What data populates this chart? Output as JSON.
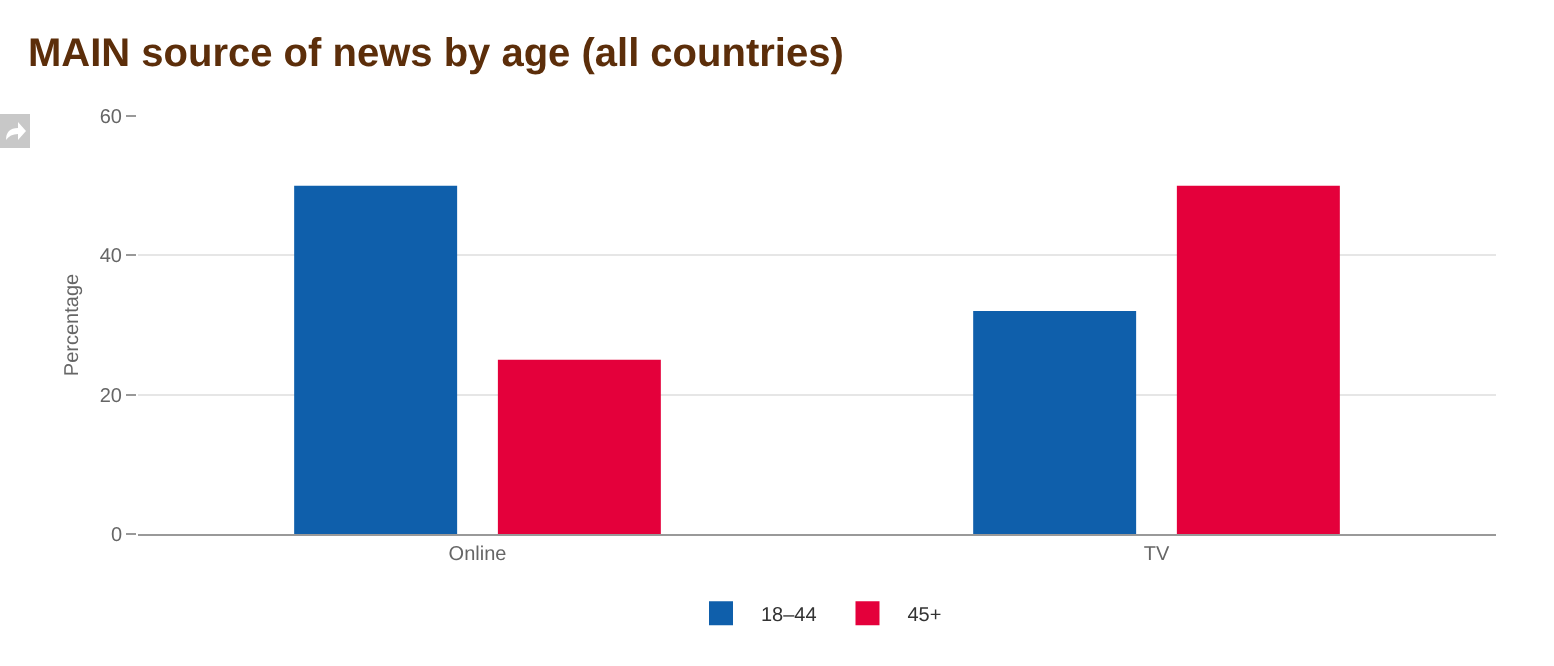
{
  "chart_data": {
    "type": "bar",
    "title": "MAIN source of news by age (all countries)",
    "ylabel": "Percentage",
    "categories": [
      "Online",
      "TV"
    ],
    "series": [
      {
        "name": "18–44",
        "color": "#0f5fab",
        "values": [
          50,
          32
        ]
      },
      {
        "name": "45+",
        "color": "#e4003b",
        "values": [
          25,
          50
        ]
      }
    ],
    "ylim": [
      0,
      60
    ],
    "yticks": [
      0,
      20,
      40,
      60
    ],
    "grid": "y",
    "legend": "bottom"
  }
}
